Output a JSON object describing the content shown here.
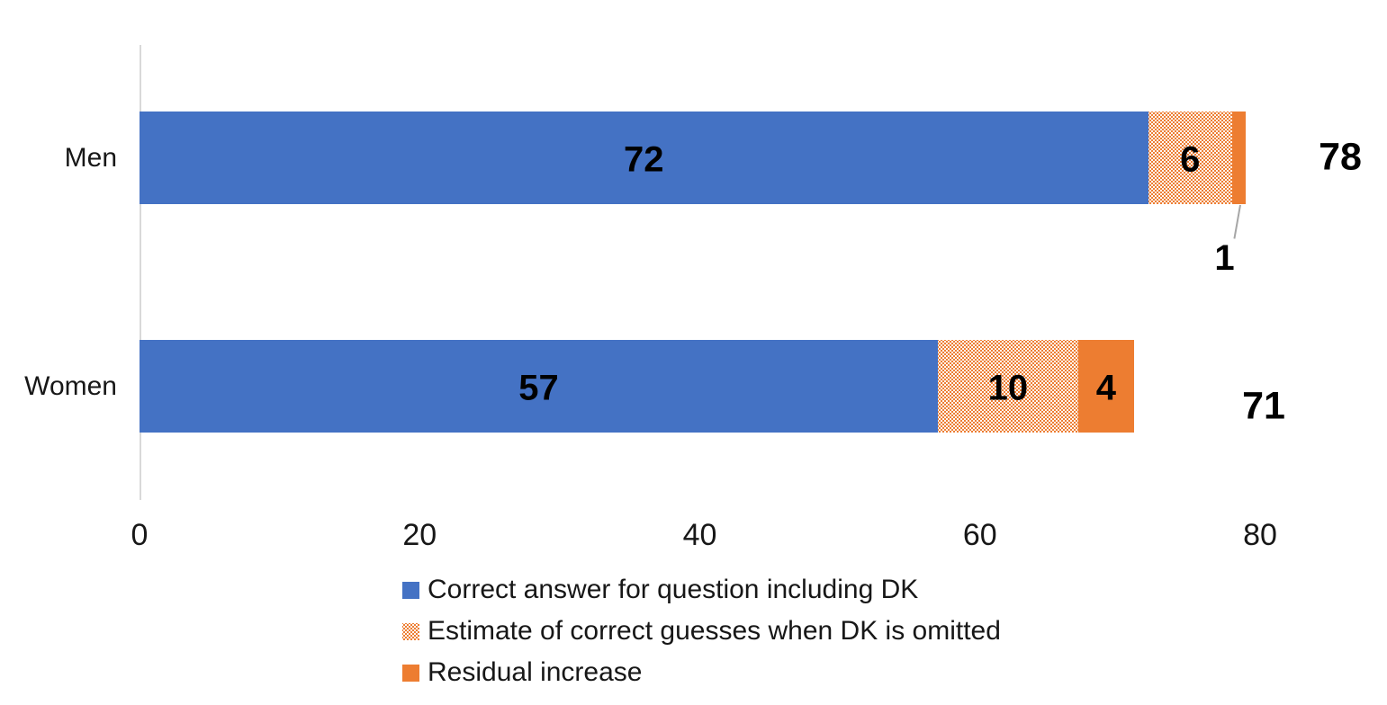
{
  "chart_data": {
    "type": "bar",
    "orientation": "horizontal",
    "stacked": true,
    "title": "",
    "categories": [
      "Men",
      "Women"
    ],
    "series": [
      {
        "name": "Correct answer for question including DK",
        "color": "#4472C4",
        "fill": "solid",
        "values": [
          72,
          57
        ]
      },
      {
        "name": "Estimate of correct guesses when DK is omitted",
        "color": "#ED7D31",
        "fill": "dotted-pattern",
        "values": [
          6,
          10
        ]
      },
      {
        "name": "Residual increase",
        "color": "#ED7D31",
        "fill": "solid",
        "values": [
          1,
          4
        ]
      }
    ],
    "totals": [
      78,
      71
    ],
    "xlim": [
      0,
      80
    ],
    "x_ticks": [
      "0",
      "20",
      "40",
      "60",
      "80"
    ],
    "grid": false,
    "legend_position": "bottom-left"
  },
  "colors": {
    "series_blue": "#4472C4",
    "series_orange": "#ED7D31",
    "axis_line": "#D9D9D9",
    "leader_line": "#A6A6A6",
    "label_text": "#000000"
  }
}
